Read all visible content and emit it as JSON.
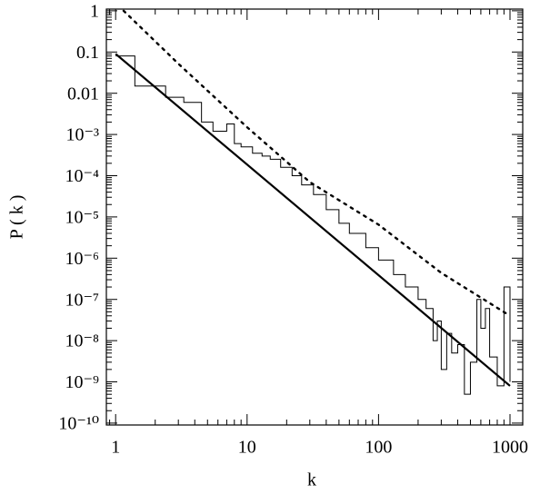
{
  "chart_data": {
    "type": "line",
    "xlabel": "k",
    "ylabel": "P ( k )",
    "xscale": "log",
    "yscale": "log",
    "xlim": [
      0.85,
      1250
    ],
    "ylim": [
      9e-11,
      1.1
    ],
    "xticks": [
      1,
      10,
      100,
      1000
    ],
    "yticks": [
      1,
      0.1,
      0.01,
      {
        "value": 0.001,
        "label": "10⁻³"
      },
      {
        "value": 0.0001,
        "label": "10⁻⁴"
      },
      {
        "value": 1e-05,
        "label": "10⁻⁵"
      },
      {
        "value": 1e-06,
        "label": "10⁻⁶"
      },
      {
        "value": 1e-07,
        "label": "10⁻⁷"
      },
      {
        "value": 1e-08,
        "label": "10⁻⁸"
      },
      {
        "value": 1e-09,
        "label": "10⁻⁹"
      },
      {
        "value": 1e-10,
        "label": "10⁻¹⁰"
      }
    ],
    "series": [
      {
        "style": "step",
        "color": "#000000",
        "x": [
          1,
          1.4,
          2.4,
          3.3,
          4.5,
          5.5,
          7,
          8,
          9,
          11,
          13,
          15,
          18,
          22,
          26,
          32,
          40,
          50,
          60,
          80,
          100,
          130,
          160,
          200,
          230,
          260,
          280,
          300,
          330,
          360,
          400,
          450,
          500,
          560,
          600,
          650,
          700,
          800,
          900,
          1000
        ],
        "values": [
          0.08,
          0.015,
          0.008,
          0.006,
          0.002,
          0.0012,
          0.0018,
          0.0006,
          0.0005,
          0.00035,
          0.0003,
          0.00025,
          0.00016,
          0.0001,
          6e-05,
          3.5e-05,
          1.5e-05,
          7e-06,
          4e-06,
          1.8e-06,
          9e-07,
          4e-07,
          2e-07,
          1e-07,
          6e-08,
          1e-08,
          3e-08,
          2e-09,
          1.5e-08,
          5e-09,
          8e-09,
          5e-10,
          3e-09,
          1e-07,
          2e-08,
          6e-08,
          4e-09,
          8e-10,
          2e-07,
          1e-09
        ]
      },
      {
        "style": "solid",
        "color": "#000000",
        "x": [
          1,
          1000
        ],
        "values": [
          0.09,
          8e-10
        ]
      },
      {
        "style": "dotted",
        "color": "#000000",
        "x": [
          1.15,
          3,
          10,
          30,
          100,
          300,
          1000
        ],
        "values": [
          1,
          0.052,
          0.0015,
          7e-05,
          6.5e-06,
          4.4e-07,
          4e-08
        ]
      }
    ]
  }
}
